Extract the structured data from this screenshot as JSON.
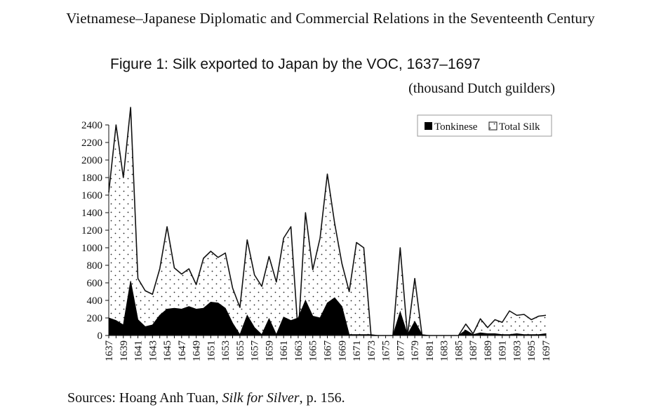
{
  "page": {
    "running_head": "Vietnamese–Japanese Diplomatic and Commercial Relations in the Seventeenth Century",
    "figure_title": "Figure 1: Silk exported to Japan by the VOC, 1637–1697",
    "units": "(thousand Dutch guilders)",
    "source": {
      "prefix": "Sources: Hoang Anh Tuan, ",
      "book": "Silk for Silver",
      "suffix": ", p. 156."
    }
  },
  "chart_data": {
    "type": "area",
    "title": "Figure 1: Silk exported to Japan by the VOC, 1637–1697",
    "subtitle": "(thousand Dutch guilders)",
    "xlabel": "",
    "ylabel": "",
    "ylim": [
      0,
      2400
    ],
    "yticks": [
      0,
      200,
      400,
      600,
      800,
      1000,
      1200,
      1400,
      1600,
      1800,
      2000,
      2200,
      2400
    ],
    "xtick_labels": [
      "1637",
      "1639",
      "1641",
      "1643",
      "1645",
      "1647",
      "1649",
      "1651",
      "1653",
      "1655",
      "1657",
      "1659",
      "1661",
      "1663",
      "1665",
      "1667",
      "1669",
      "1671",
      "1673",
      "1675",
      "1677",
      "1679",
      "1681",
      "1683",
      "1685",
      "1687",
      "1689",
      "1691",
      "1693",
      "1695",
      "1697"
    ],
    "legend_position": "top-right",
    "grid": false,
    "x": [
      1637,
      1638,
      1639,
      1640,
      1641,
      1642,
      1643,
      1644,
      1645,
      1646,
      1647,
      1648,
      1649,
      1650,
      1651,
      1652,
      1653,
      1654,
      1655,
      1656,
      1657,
      1658,
      1659,
      1660,
      1661,
      1662,
      1663,
      1664,
      1665,
      1666,
      1667,
      1668,
      1669,
      1670,
      1671,
      1672,
      1673,
      1674,
      1675,
      1676,
      1677,
      1678,
      1679,
      1680,
      1681,
      1682,
      1683,
      1684,
      1685,
      1686,
      1687,
      1688,
      1689,
      1690,
      1691,
      1692,
      1693,
      1694,
      1695,
      1696,
      1697
    ],
    "series": [
      {
        "name": "Tonkinese",
        "fill": "solid-black",
        "color": "#000000",
        "values": [
          200,
          170,
          120,
          620,
          180,
          100,
          120,
          230,
          300,
          310,
          300,
          330,
          300,
          310,
          380,
          370,
          310,
          140,
          10,
          230,
          90,
          10,
          190,
          10,
          210,
          170,
          200,
          400,
          220,
          200,
          370,
          430,
          330,
          10,
          10,
          10,
          10,
          0,
          0,
          0,
          270,
          10,
          160,
          10,
          0,
          0,
          0,
          0,
          0,
          60,
          10,
          30,
          20,
          20,
          10,
          10,
          20,
          10,
          10,
          10,
          20
        ]
      },
      {
        "name": "Total Silk",
        "fill": "dotted",
        "color": "#000000",
        "values": [
          1630,
          2400,
          1800,
          2600,
          650,
          510,
          470,
          760,
          1240,
          770,
          700,
          760,
          580,
          880,
          960,
          890,
          940,
          540,
          320,
          1090,
          690,
          560,
          900,
          610,
          1110,
          1240,
          10,
          1400,
          750,
          1110,
          1840,
          1280,
          820,
          500,
          1060,
          1000,
          0,
          0,
          0,
          0,
          1000,
          0,
          650,
          0,
          0,
          0,
          0,
          0,
          0,
          130,
          20,
          190,
          90,
          180,
          150,
          280,
          230,
          240,
          180,
          220,
          230
        ]
      }
    ]
  }
}
